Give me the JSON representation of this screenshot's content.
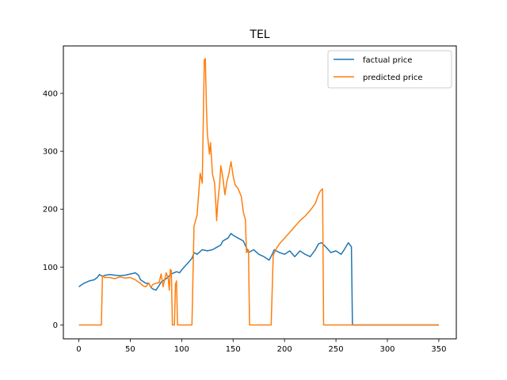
{
  "chart_data": {
    "type": "line",
    "title": "TEL",
    "xlabel": "",
    "ylabel": "",
    "xlim": [
      -15,
      367
    ],
    "ylim": [
      -24,
      482
    ],
    "x_ticks": [
      0,
      50,
      100,
      150,
      200,
      250,
      300,
      350
    ],
    "y_ticks": [
      0,
      100,
      200,
      300,
      400
    ],
    "grid": false,
    "legend_position": "top-right",
    "series": [
      {
        "name": "factual price",
        "color": "#1f77b4",
        "points": [
          [
            0,
            66
          ],
          [
            5,
            72
          ],
          [
            10,
            76
          ],
          [
            15,
            78
          ],
          [
            18,
            82
          ],
          [
            20,
            87
          ],
          [
            23,
            84
          ],
          [
            26,
            86
          ],
          [
            30,
            87
          ],
          [
            35,
            86
          ],
          [
            40,
            85
          ],
          [
            45,
            86
          ],
          [
            50,
            88
          ],
          [
            55,
            90
          ],
          [
            58,
            86
          ],
          [
            60,
            78
          ],
          [
            65,
            72
          ],
          [
            68,
            72
          ],
          [
            70,
            65
          ],
          [
            72,
            62
          ],
          [
            75,
            60
          ],
          [
            78,
            68
          ],
          [
            80,
            74
          ],
          [
            85,
            80
          ],
          [
            90,
            88
          ],
          [
            95,
            92
          ],
          [
            98,
            90
          ],
          [
            100,
            95
          ],
          [
            105,
            105
          ],
          [
            110,
            115
          ],
          [
            112,
            125
          ],
          [
            115,
            122
          ],
          [
            120,
            130
          ],
          [
            125,
            128
          ],
          [
            130,
            130
          ],
          [
            135,
            135
          ],
          [
            138,
            138
          ],
          [
            140,
            145
          ],
          [
            145,
            150
          ],
          [
            148,
            158
          ],
          [
            150,
            155
          ],
          [
            155,
            150
          ],
          [
            160,
            145
          ],
          [
            165,
            125
          ],
          [
            170,
            130
          ],
          [
            175,
            122
          ],
          [
            180,
            118
          ],
          [
            185,
            112
          ],
          [
            188,
            122
          ],
          [
            190,
            130
          ],
          [
            195,
            125
          ],
          [
            200,
            122
          ],
          [
            205,
            128
          ],
          [
            210,
            118
          ],
          [
            215,
            128
          ],
          [
            220,
            122
          ],
          [
            225,
            118
          ],
          [
            230,
            130
          ],
          [
            233,
            140
          ],
          [
            236,
            142
          ],
          [
            240,
            135
          ],
          [
            245,
            125
          ],
          [
            250,
            128
          ],
          [
            255,
            122
          ],
          [
            258,
            130
          ],
          [
            262,
            142
          ],
          [
            265,
            135
          ],
          [
            266,
            0
          ],
          [
            300,
            0
          ],
          [
            350,
            0
          ]
        ]
      },
      {
        "name": "predicted price",
        "color": "#ff7f0e",
        "points": [
          [
            0,
            0
          ],
          [
            22,
            0
          ],
          [
            23,
            85
          ],
          [
            25,
            82
          ],
          [
            30,
            82
          ],
          [
            35,
            80
          ],
          [
            40,
            83
          ],
          [
            45,
            81
          ],
          [
            50,
            82
          ],
          [
            55,
            78
          ],
          [
            58,
            74
          ],
          [
            60,
            72
          ],
          [
            62,
            68
          ],
          [
            65,
            66
          ],
          [
            68,
            72
          ],
          [
            70,
            65
          ],
          [
            72,
            70
          ],
          [
            75,
            72
          ],
          [
            78,
            73
          ],
          [
            80,
            88
          ],
          [
            82,
            66
          ],
          [
            83,
            74
          ],
          [
            85,
            90
          ],
          [
            87,
            80
          ],
          [
            88,
            60
          ],
          [
            89,
            96
          ],
          [
            90,
            94
          ],
          [
            91,
            0
          ],
          [
            93,
            0
          ],
          [
            94,
            70
          ],
          [
            95,
            76
          ],
          [
            96,
            0
          ],
          [
            110,
            0
          ],
          [
            112,
            170
          ],
          [
            115,
            190
          ],
          [
            118,
            262
          ],
          [
            120,
            245
          ],
          [
            122,
            458
          ],
          [
            123,
            460
          ],
          [
            124,
            380
          ],
          [
            125,
            330
          ],
          [
            127,
            295
          ],
          [
            128,
            315
          ],
          [
            130,
            260
          ],
          [
            132,
            245
          ],
          [
            133,
            215
          ],
          [
            134,
            180
          ],
          [
            135,
            210
          ],
          [
            137,
            245
          ],
          [
            138,
            275
          ],
          [
            140,
            255
          ],
          [
            141,
            240
          ],
          [
            142,
            225
          ],
          [
            144,
            248
          ],
          [
            146,
            262
          ],
          [
            148,
            282
          ],
          [
            150,
            258
          ],
          [
            152,
            242
          ],
          [
            155,
            235
          ],
          [
            158,
            222
          ],
          [
            160,
            195
          ],
          [
            162,
            182
          ],
          [
            163,
            125
          ],
          [
            165,
            130
          ],
          [
            166,
            0
          ],
          [
            187,
            0
          ],
          [
            189,
            120
          ],
          [
            192,
            132
          ],
          [
            195,
            140
          ],
          [
            200,
            150
          ],
          [
            205,
            160
          ],
          [
            210,
            170
          ],
          [
            215,
            180
          ],
          [
            220,
            188
          ],
          [
            225,
            198
          ],
          [
            230,
            210
          ],
          [
            233,
            225
          ],
          [
            235,
            232
          ],
          [
            237,
            235
          ],
          [
            238,
            0
          ],
          [
            300,
            0
          ],
          [
            350,
            0
          ]
        ]
      }
    ]
  }
}
